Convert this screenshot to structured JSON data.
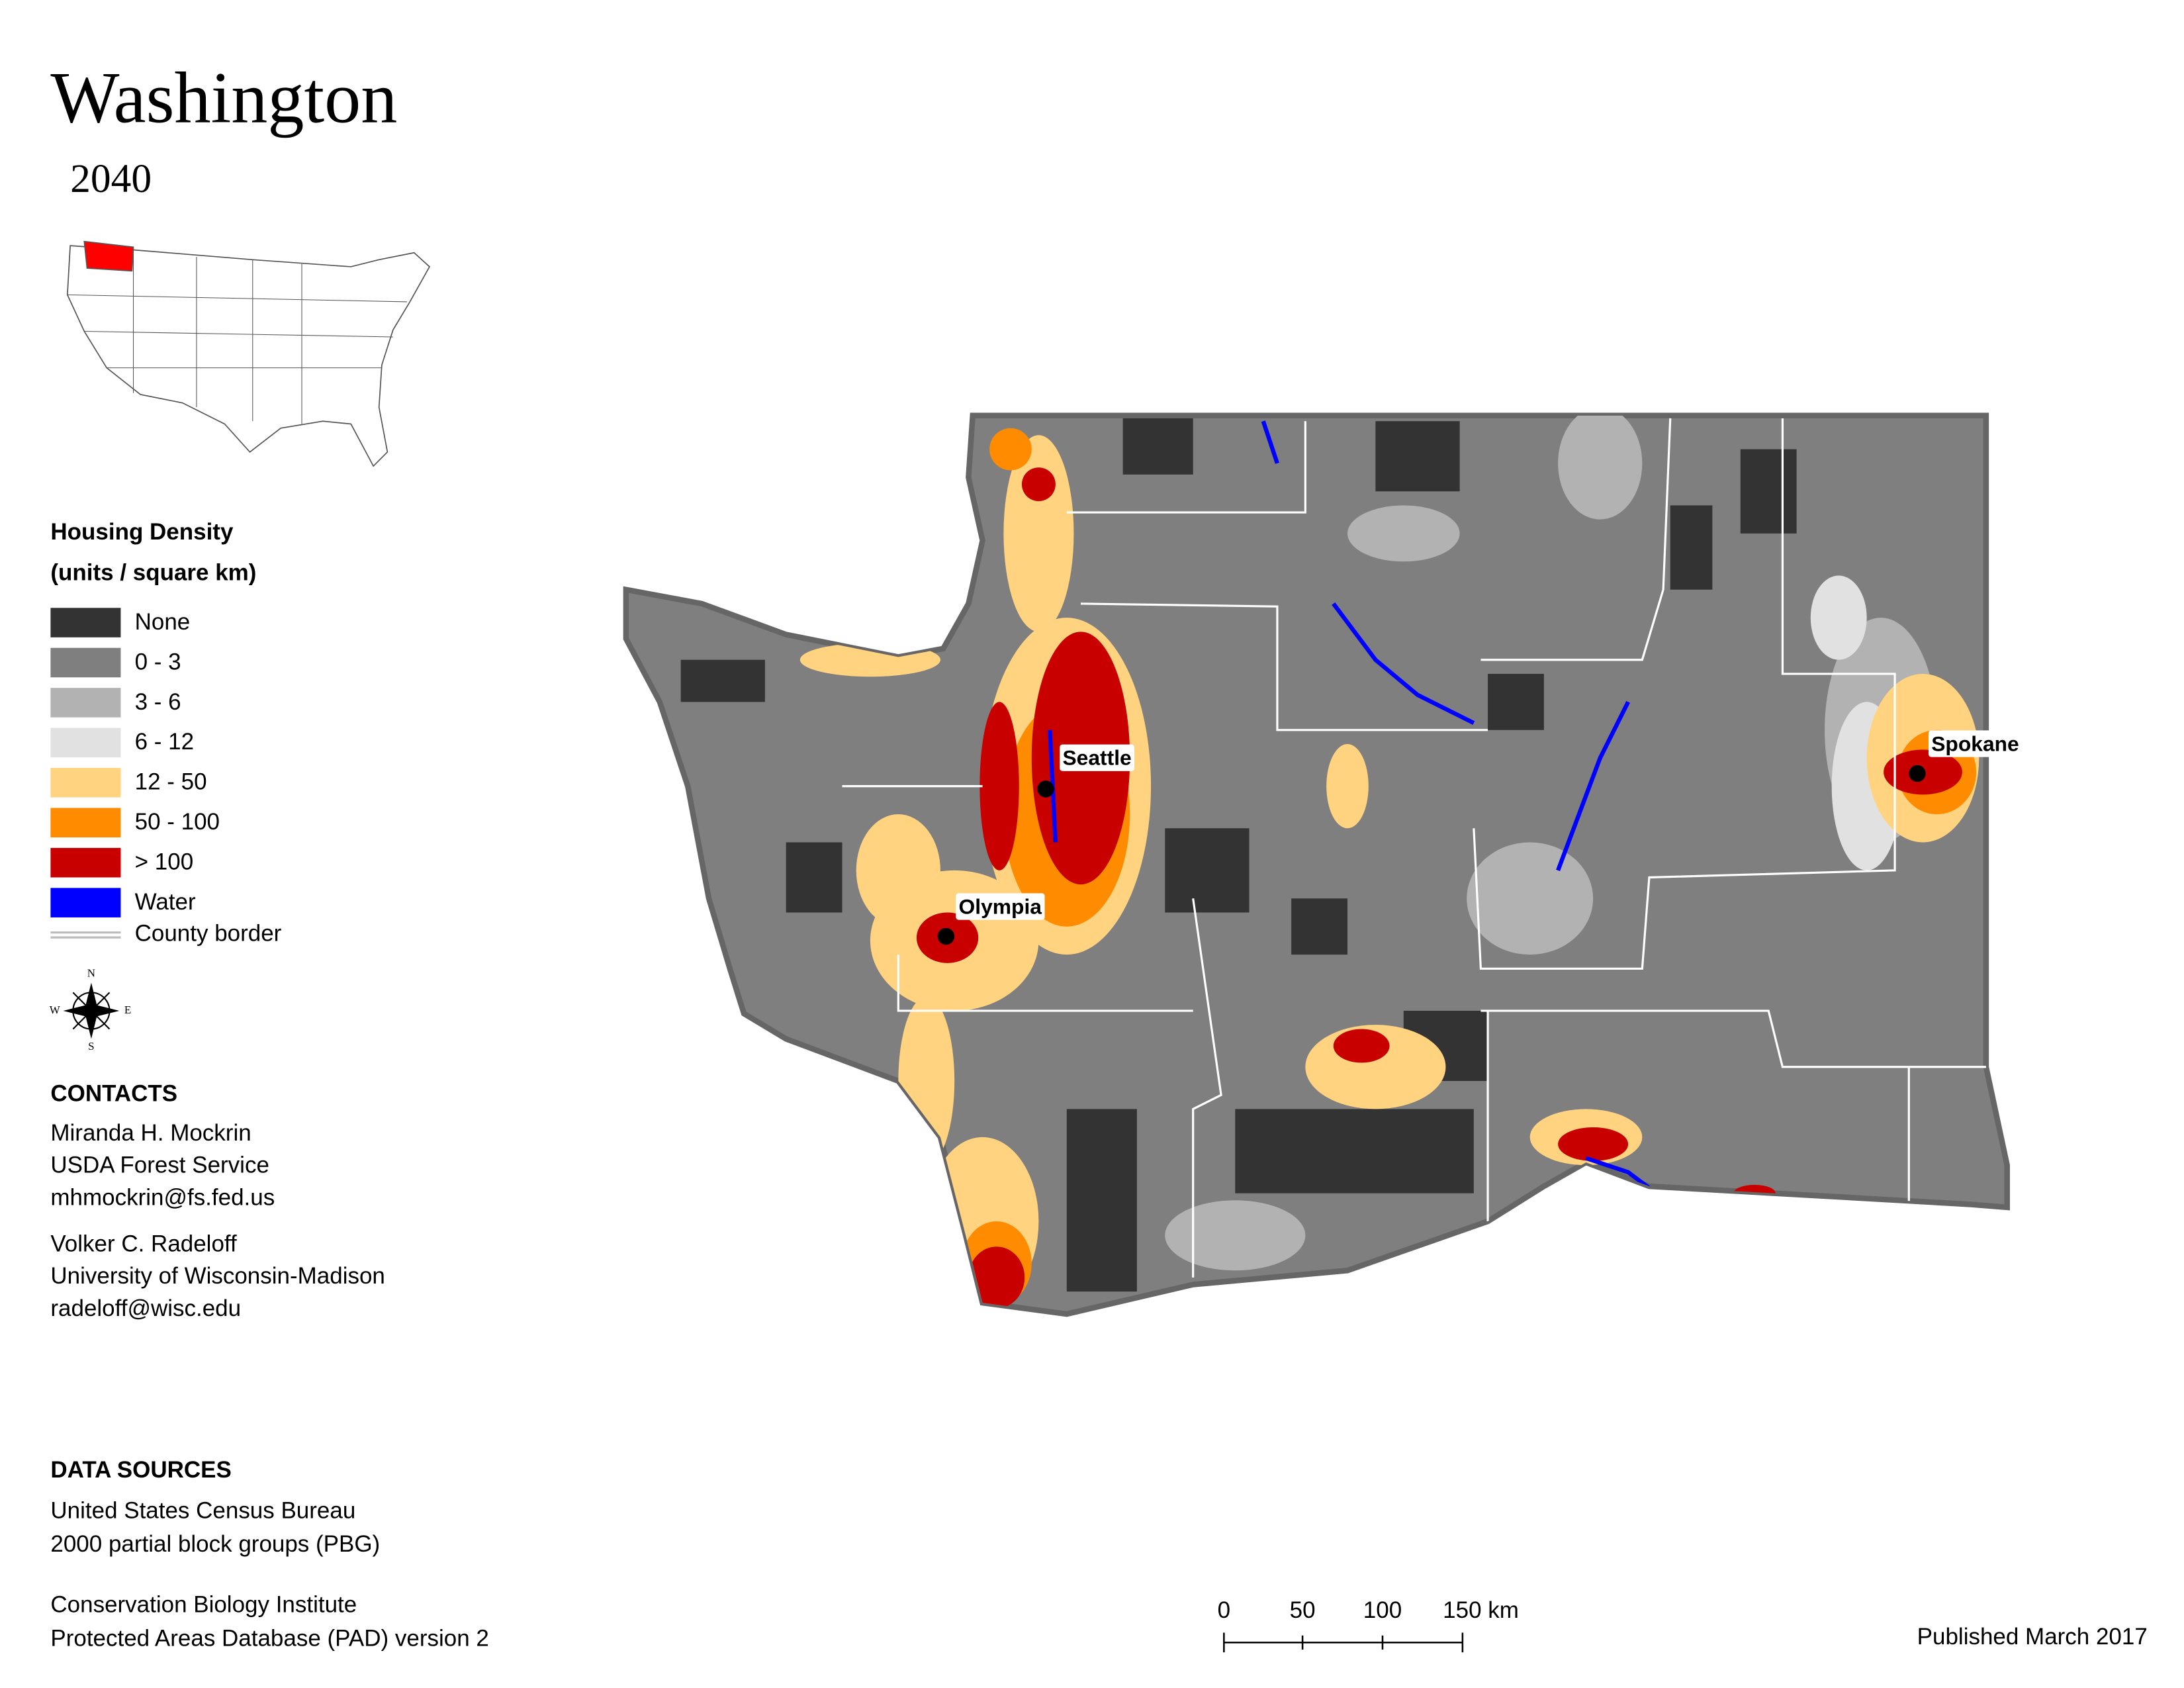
{
  "header": {
    "title": "Washington",
    "subtitle": "2040"
  },
  "legend": {
    "title": "Housing Density",
    "subtitle": "(units / square km)",
    "items": [
      {
        "label": "None",
        "color": "#333333"
      },
      {
        "label": "0 - 3",
        "color": "#7f7f7f"
      },
      {
        "label": "3 - 6",
        "color": "#b2b2b2"
      },
      {
        "label": "6 - 12",
        "color": "#e1e1e1"
      },
      {
        "label": "12 - 50",
        "color": "#ffd37f"
      },
      {
        "label": "50 - 100",
        "color": "#ff8c00"
      },
      {
        "label": "> 100",
        "color": "#c80000"
      },
      {
        "label": "Water",
        "color": "#0000ff"
      },
      {
        "label": "County border",
        "color": "#ffffff"
      }
    ]
  },
  "compass": {
    "n": "N",
    "e": "E",
    "s": "S",
    "w": "W"
  },
  "cities": [
    {
      "label": "Seattle"
    },
    {
      "label": "Olympia"
    },
    {
      "label": "Spokane"
    }
  ],
  "contacts": {
    "title": "CONTACTS",
    "people": [
      [
        "Miranda H. Mockrin",
        "USDA Forest Service",
        "mhmockrin@fs.fed.us"
      ],
      [
        "Volker C. Radeloff",
        "University of Wisconsin-Madison",
        "radeloff@wisc.edu"
      ]
    ]
  },
  "data_sources": {
    "title": "DATA SOURCES",
    "entries": [
      [
        "United States Census Bureau",
        "2000 partial block groups (PBG)"
      ],
      [
        "Conservation Biology Institute",
        "Protected Areas Database (PAD) version 2"
      ]
    ]
  },
  "scale_bar": {
    "labels": [
      "0",
      "50",
      "100",
      "150 km"
    ]
  },
  "footer": {
    "published": "Published March 2017"
  }
}
